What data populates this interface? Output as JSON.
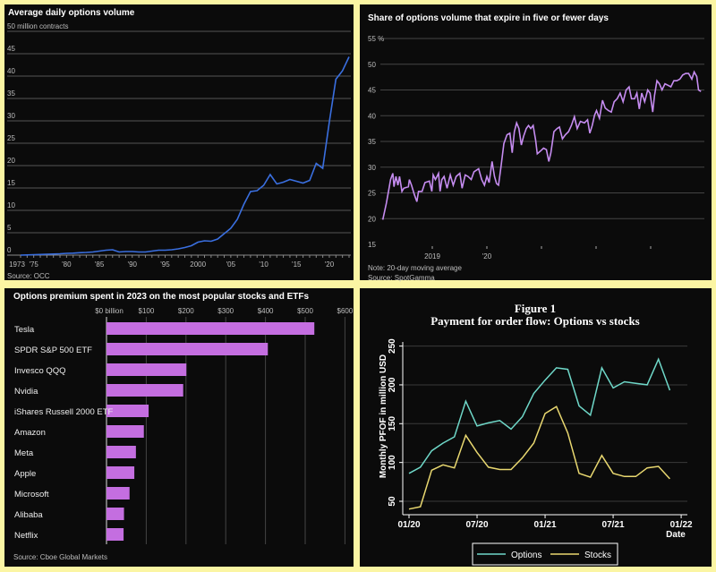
{
  "chart_data": [
    {
      "type": "line",
      "title": "Average daily options volume",
      "ylabel": "50 million contracts",
      "ylim": [
        0,
        50
      ],
      "yticks": [
        "0",
        "5",
        "10",
        "15",
        "20",
        "25",
        "30",
        "35",
        "40",
        "45"
      ],
      "xticks": [
        {
          "x": 1973,
          "label": "1973"
        },
        {
          "x": 1975,
          "label": "'75"
        },
        {
          "x": 1980,
          "label": "'80"
        },
        {
          "x": 1985,
          "label": "'85"
        },
        {
          "x": 1990,
          "label": "'90"
        },
        {
          "x": 1995,
          "label": "'95"
        },
        {
          "x": 2000,
          "label": "2000"
        },
        {
          "x": 2005,
          "label": "'05"
        },
        {
          "x": 2010,
          "label": "'10"
        },
        {
          "x": 2015,
          "label": "'15"
        },
        {
          "x": 2020,
          "label": "'20"
        }
      ],
      "source": "Source: OCC",
      "grid": true,
      "color": "#3a6fe0",
      "x": [
        1973,
        1974,
        1975,
        1976,
        1977,
        1978,
        1979,
        1980,
        1981,
        1982,
        1983,
        1984,
        1985,
        1986,
        1987,
        1988,
        1989,
        1990,
        1991,
        1992,
        1993,
        1994,
        1995,
        1996,
        1997,
        1998,
        1999,
        2000,
        2001,
        2002,
        2003,
        2004,
        2005,
        2006,
        2007,
        2008,
        2009,
        2010,
        2011,
        2012,
        2013,
        2014,
        2015,
        2016,
        2017,
        2018,
        2019,
        2020,
        2021,
        2022,
        2023
      ],
      "values": [
        0.0,
        0.05,
        0.1,
        0.15,
        0.2,
        0.25,
        0.3,
        0.4,
        0.45,
        0.55,
        0.6,
        0.7,
        0.9,
        1.1,
        1.2,
        0.7,
        0.8,
        0.8,
        0.7,
        0.7,
        0.9,
        1.1,
        1.1,
        1.2,
        1.4,
        1.7,
        2.1,
        2.9,
        3.2,
        3.1,
        3.6,
        4.8,
        6.0,
        8.0,
        11.4,
        14.2,
        14.4,
        15.6,
        18.0,
        15.9,
        16.3,
        16.9,
        16.5,
        16.1,
        16.7,
        20.5,
        19.4,
        29.8,
        39.3,
        41.2,
        44.3
      ]
    },
    {
      "type": "line",
      "title": "Share of options volume that expire in five or fewer days",
      "ylim": [
        15,
        55
      ],
      "ytop_label": "55 %",
      "yticks": [
        "15",
        "20",
        "25",
        "30",
        "35",
        "40",
        "45",
        "50"
      ],
      "xticks": [
        {
          "x": "2019-01-01",
          "label": "2019"
        },
        {
          "x": "2020-01-01",
          "label": "'20"
        },
        {
          "x": "2021-01-01",
          "label": ""
        },
        {
          "x": "2022-01-01",
          "label": ""
        },
        {
          "x": "2023-01-01",
          "label": ""
        }
      ],
      "note": "Note: 20-day moving average",
      "source": "Source: SpotGamma",
      "grid": true,
      "color": "#c58cf0",
      "points": [
        [
          "2018-02-04",
          19.8
        ],
        [
          "2018-02-28",
          23.0
        ],
        [
          "2018-03-18",
          25.9
        ],
        [
          "2018-03-28",
          27.6
        ],
        [
          "2018-04-12",
          28.8
        ],
        [
          "2018-04-20",
          26.2
        ],
        [
          "2018-05-03",
          28.2
        ],
        [
          "2018-05-16",
          26.5
        ],
        [
          "2018-05-27",
          28.2
        ],
        [
          "2018-06-12",
          25.3
        ],
        [
          "2018-06-25",
          25.9
        ],
        [
          "2018-07-25",
          26.2
        ],
        [
          "2018-08-01",
          27.6
        ],
        [
          "2018-08-15",
          26.5
        ],
        [
          "2018-09-03",
          24.7
        ],
        [
          "2018-09-20",
          23.3
        ],
        [
          "2018-10-01",
          25.3
        ],
        [
          "2018-10-25",
          25.3
        ],
        [
          "2018-11-13",
          27.0
        ],
        [
          "2018-12-13",
          27.3
        ],
        [
          "2018-12-29",
          25.3
        ],
        [
          "2019-01-07",
          28.5
        ],
        [
          "2019-01-22",
          27.6
        ],
        [
          "2019-02-12",
          28.8
        ],
        [
          "2019-02-22",
          25.3
        ],
        [
          "2019-03-06",
          27.6
        ],
        [
          "2019-03-21",
          28.2
        ],
        [
          "2019-04-10",
          25.9
        ],
        [
          "2019-05-01",
          28.5
        ],
        [
          "2019-05-21",
          26.5
        ],
        [
          "2019-06-10",
          28.2
        ],
        [
          "2019-07-04",
          28.8
        ],
        [
          "2019-07-19",
          25.9
        ],
        [
          "2019-08-09",
          28.5
        ],
        [
          "2019-08-28",
          28.2
        ],
        [
          "2019-09-18",
          27.6
        ],
        [
          "2019-10-07",
          29.1
        ],
        [
          "2019-11-07",
          29.7
        ],
        [
          "2019-11-27",
          27.6
        ],
        [
          "2019-12-16",
          26.5
        ],
        [
          "2020-01-01",
          28.2
        ],
        [
          "2020-01-16",
          27.0
        ],
        [
          "2020-02-05",
          31.1
        ],
        [
          "2020-02-21",
          28.2
        ],
        [
          "2020-03-06",
          26.8
        ],
        [
          "2020-03-19",
          26.5
        ],
        [
          "2020-04-04",
          30.0
        ],
        [
          "2020-04-24",
          34.6
        ],
        [
          "2020-05-15",
          36.3
        ],
        [
          "2020-06-03",
          36.6
        ],
        [
          "2020-06-19",
          32.8
        ],
        [
          "2020-07-03",
          36.9
        ],
        [
          "2020-07-18",
          38.6
        ],
        [
          "2020-08-03",
          37.5
        ],
        [
          "2020-08-19",
          34.3
        ],
        [
          "2020-09-03",
          36.0
        ],
        [
          "2020-09-21",
          37.5
        ],
        [
          "2020-10-06",
          38.1
        ],
        [
          "2020-10-21",
          37.5
        ],
        [
          "2020-11-06",
          38.1
        ],
        [
          "2020-11-23",
          35.2
        ],
        [
          "2020-12-04",
          32.6
        ],
        [
          "2020-12-24",
          33.1
        ],
        [
          "2021-01-15",
          33.7
        ],
        [
          "2021-02-03",
          33.4
        ],
        [
          "2021-02-19",
          31.1
        ],
        [
          "2021-03-05",
          32.8
        ],
        [
          "2021-03-25",
          36.9
        ],
        [
          "2021-04-15",
          37.5
        ],
        [
          "2021-05-01",
          37.8
        ],
        [
          "2021-05-21",
          35.5
        ],
        [
          "2021-06-10",
          36.3
        ],
        [
          "2021-07-01",
          36.9
        ],
        [
          "2021-07-20",
          38.1
        ],
        [
          "2021-08-09",
          39.8
        ],
        [
          "2021-08-28",
          37.5
        ],
        [
          "2021-09-18",
          38.9
        ],
        [
          "2021-10-15",
          38.6
        ],
        [
          "2021-11-05",
          39.2
        ],
        [
          "2021-11-20",
          36.6
        ],
        [
          "2021-12-06",
          38.1
        ],
        [
          "2021-12-22",
          40.1
        ],
        [
          "2022-01-04",
          41.0
        ],
        [
          "2022-01-24",
          39.5
        ],
        [
          "2022-02-13",
          43.0
        ],
        [
          "2022-03-03",
          41.5
        ],
        [
          "2022-03-24",
          41.0
        ],
        [
          "2022-04-13",
          40.7
        ],
        [
          "2022-05-02",
          42.7
        ],
        [
          "2022-05-22",
          43.3
        ],
        [
          "2022-06-11",
          44.4
        ],
        [
          "2022-07-01",
          42.7
        ],
        [
          "2022-07-21",
          45.0
        ],
        [
          "2022-08-10",
          45.6
        ],
        [
          "2022-08-26",
          43.3
        ],
        [
          "2022-09-15",
          43.3
        ],
        [
          "2022-10-01",
          44.4
        ],
        [
          "2022-10-17",
          41.3
        ],
        [
          "2022-11-02",
          44.4
        ],
        [
          "2022-11-22",
          42.7
        ],
        [
          "2022-12-12",
          45.0
        ],
        [
          "2022-12-28",
          44.4
        ],
        [
          "2023-01-15",
          40.7
        ],
        [
          "2023-01-27",
          43.9
        ],
        [
          "2023-02-12",
          46.8
        ],
        [
          "2023-02-28",
          46.2
        ],
        [
          "2023-03-18",
          45.0
        ],
        [
          "2023-04-07",
          46.2
        ],
        [
          "2023-04-27",
          45.9
        ],
        [
          "2023-05-16",
          45.6
        ],
        [
          "2023-06-05",
          46.8
        ],
        [
          "2023-06-25",
          46.8
        ],
        [
          "2023-07-15",
          47.1
        ],
        [
          "2023-08-03",
          47.9
        ],
        [
          "2023-08-23",
          48.2
        ],
        [
          "2023-09-12",
          48.2
        ],
        [
          "2023-10-03",
          47.1
        ],
        [
          "2023-10-19",
          48.5
        ],
        [
          "2023-11-05",
          47.6
        ],
        [
          "2023-11-17",
          45.0
        ],
        [
          "2023-12-03",
          44.7
        ]
      ]
    },
    {
      "type": "bar",
      "orientation": "horizontal",
      "title": "Options premium spent in 2023 on the most popular stocks and ETFs",
      "xlim": [
        0,
        600
      ],
      "xticks": [
        "$0 billion",
        "$100",
        "$200",
        "$300",
        "$400",
        "$500",
        "$600"
      ],
      "categories": [
        "Tesla",
        "SPDR S&P 500 ETF",
        "Invesco QQQ",
        "Nvidia",
        "iShares Russell 2000 ETF",
        "Amazon",
        "Meta",
        "Apple",
        "Microsoft",
        "Alibaba",
        "Netflix"
      ],
      "values": [
        523,
        406,
        201,
        193,
        106,
        94,
        74,
        70,
        58,
        44,
        43
      ],
      "source": "Source: Cboe Global Markets",
      "grid": true,
      "color": "#c46ee0"
    },
    {
      "type": "line",
      "title": "Figure 1",
      "subtitle": "Payment for order flow: Options vs stocks",
      "ylabel": "Monthly PFOF in million USD",
      "xlabel": "Date",
      "ylim": [
        50,
        250
      ],
      "yticks": [
        "50",
        "100",
        "150",
        "200",
        "250"
      ],
      "xticks": [
        {
          "x": "2020-01",
          "label": "01/20"
        },
        {
          "x": "2020-07",
          "label": "07/20"
        },
        {
          "x": "2021-01",
          "label": "01/21"
        },
        {
          "x": "2021-07",
          "label": "07/21"
        },
        {
          "x": "2022-01",
          "label": "01/22"
        }
      ],
      "legend": "bottom",
      "grid": true,
      "x": [
        "2020-01",
        "2020-02",
        "2020-03",
        "2020-04",
        "2020-05",
        "2020-06",
        "2020-07",
        "2020-08",
        "2020-09",
        "2020-10",
        "2020-11",
        "2020-12",
        "2021-01",
        "2021-02",
        "2021-03",
        "2021-04",
        "2021-05",
        "2021-06",
        "2021-07",
        "2021-08",
        "2021-09",
        "2021-10",
        "2021-11",
        "2021-12"
      ],
      "series": [
        {
          "name": "Options",
          "color": "#6fd8c9",
          "values": [
            86,
            94,
            115,
            125,
            133,
            179,
            147,
            151,
            154,
            143,
            159,
            189,
            206,
            222,
            220,
            173,
            161,
            222,
            196,
            204,
            202,
            200,
            233,
            193
          ]
        },
        {
          "name": "Stocks",
          "color": "#e9d870",
          "values": [
            40,
            43,
            90,
            97,
            93,
            135,
            113,
            94,
            91,
            91,
            106,
            125,
            163,
            172,
            138,
            86,
            81,
            109,
            86,
            82,
            82,
            93,
            95,
            79
          ]
        }
      ]
    }
  ]
}
